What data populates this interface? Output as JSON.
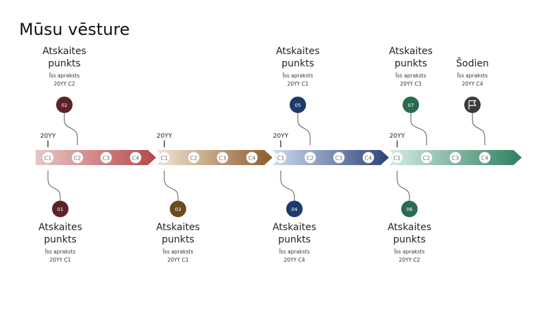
{
  "title": "Mūsu vēsture",
  "segments": [
    {
      "year": "20YY",
      "quarters": [
        "C1",
        "C2",
        "C3",
        "C4"
      ]
    },
    {
      "year": "20YY",
      "quarters": [
        "C1",
        "C2",
        "C3",
        "C4"
      ]
    },
    {
      "year": "20YY",
      "quarters": [
        "C1",
        "C2",
        "C3",
        "C4"
      ]
    },
    {
      "year": "20YY",
      "quarters": [
        "C1",
        "C2",
        "C3",
        "C4"
      ]
    }
  ],
  "milestones": [
    {
      "number": "01",
      "heading_lines": [
        "Atskaites",
        "punkts"
      ],
      "description": "Īss apraksts",
      "date": "20YY C1"
    },
    {
      "number": "02",
      "heading_lines": [
        "Atskaites",
        "punkts"
      ],
      "description": "Īss apraksts",
      "date": "20YY C2"
    },
    {
      "number": "03",
      "heading_lines": [
        "Atskaites",
        "punkts"
      ],
      "description": "Īss apraksts",
      "date": "20YY C1"
    },
    {
      "number": "04",
      "heading_lines": [
        "Atskaites",
        "punkts"
      ],
      "description": "Īss apraksts",
      "date": "20YY C4"
    },
    {
      "number": "05",
      "heading_lines": [
        "Atskaites",
        "punkts"
      ],
      "description": "Īss apraksts",
      "date": "20YY C1"
    },
    {
      "number": "06",
      "heading_lines": [
        "Atskaites",
        "punkts"
      ],
      "description": "Īss apraksts",
      "date": "20YY C2"
    },
    {
      "number": "07",
      "heading_lines": [
        "Atskaites",
        "punkts"
      ],
      "description": "Īss apraksts",
      "date": "20YY C3"
    },
    {
      "heading_lines": [
        "Šodien"
      ],
      "description": "Īss apraksts",
      "date": "20YY C4"
    }
  ]
}
